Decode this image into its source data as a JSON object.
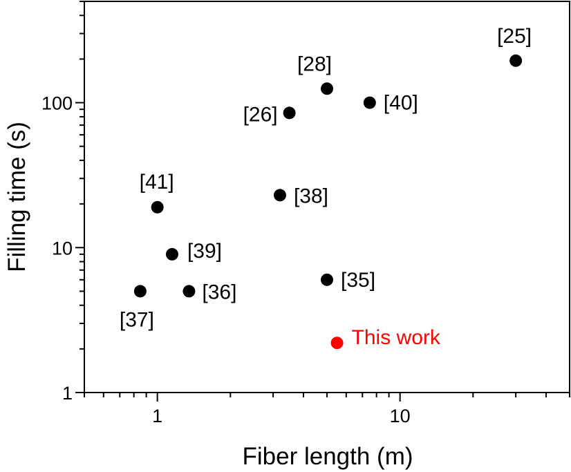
{
  "chart_data": {
    "type": "scatter",
    "xlabel": "Fiber length (m)",
    "ylabel": "Filling time (s)",
    "xscale": "log",
    "yscale": "log",
    "xlim": [
      0.5,
      50
    ],
    "ylim": [
      1,
      500
    ],
    "x_ticks": [
      1,
      10
    ],
    "x_tick_labels": [
      "1",
      "10"
    ],
    "y_ticks": [
      1,
      10,
      100
    ],
    "y_tick_labels": [
      "1",
      "10",
      "100"
    ],
    "grid": false,
    "legend": "none",
    "points": [
      {
        "label": "[25]",
        "x": 30,
        "y": 195,
        "color": "#000000"
      },
      {
        "label": "[28]",
        "x": 5,
        "y": 125,
        "color": "#000000"
      },
      {
        "label": "[40]",
        "x": 7.5,
        "y": 100,
        "color": "#000000"
      },
      {
        "label": "[26]",
        "x": 3.5,
        "y": 85,
        "color": "#000000"
      },
      {
        "label": "[41]",
        "x": 1.0,
        "y": 19,
        "color": "#000000"
      },
      {
        "label": "[38]",
        "x": 3.2,
        "y": 23,
        "color": "#000000"
      },
      {
        "label": "[39]",
        "x": 1.15,
        "y": 9,
        "color": "#000000"
      },
      {
        "label": "[37]",
        "x": 0.85,
        "y": 5,
        "color": "#000000"
      },
      {
        "label": "[36]",
        "x": 1.35,
        "y": 5,
        "color": "#000000"
      },
      {
        "label": "[35]",
        "x": 5,
        "y": 6,
        "color": "#000000"
      },
      {
        "label": "This work",
        "x": 5.5,
        "y": 2.2,
        "color": "#ff0000"
      }
    ]
  }
}
